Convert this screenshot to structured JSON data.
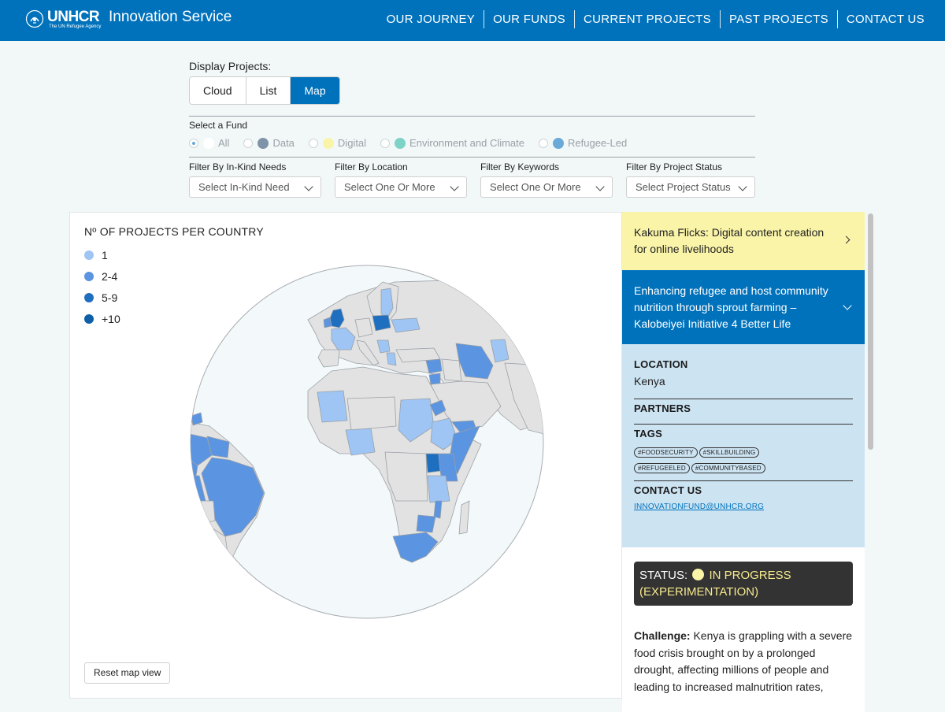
{
  "header": {
    "logo_text": "UNHCR",
    "logo_tagline": "The UN Refugee Agency",
    "site_name": "Innovation Service",
    "nav": [
      "OUR JOURNEY",
      "OUR FUNDS",
      "CURRENT PROJECTS",
      "PAST PROJECTS",
      "CONTACT US"
    ]
  },
  "display": {
    "label": "Display Projects:",
    "options": [
      "Cloud",
      "List",
      "Map"
    ],
    "selected": "Map"
  },
  "funds": {
    "label": "Select a Fund",
    "options": [
      {
        "label": "All",
        "color": "#ffffff",
        "checked": true
      },
      {
        "label": "Data",
        "color": "#7f93a8",
        "checked": false
      },
      {
        "label": "Digital",
        "color": "#faf4a8",
        "checked": false
      },
      {
        "label": "Environment and Climate",
        "color": "#7dd3c6",
        "checked": false
      },
      {
        "label": "Refugee-Led",
        "color": "#6aa9d8",
        "checked": false
      }
    ]
  },
  "filters": [
    {
      "label": "Filter By In-Kind Needs",
      "value": "Select In-Kind Need"
    },
    {
      "label": "Filter By Location",
      "value": "Select One Or More"
    },
    {
      "label": "Filter By Keywords",
      "value": "Select One Or More"
    },
    {
      "label": "Filter By Project Status",
      "value": "Select Project Status"
    }
  ],
  "map": {
    "legend_title": "Nº OF PROJECTS PER COUNTRY",
    "legend": [
      {
        "label": "1",
        "color": "#9ec5f4"
      },
      {
        "label": "2-4",
        "color": "#5b94e0"
      },
      {
        "label": "5-9",
        "color": "#1f6fc0"
      },
      {
        "label": "+10",
        "color": "#0d5fa8"
      }
    ],
    "reset_label": "Reset map view"
  },
  "side": {
    "project_1": "Kakuma Flicks: Digital content creation for online livelihoods",
    "project_2": "Enhancing refugee and host community nutrition through sprout farming – Kalobeiyei Initiative 4 Better Life",
    "location_head": "LOCATION",
    "location": "Kenya",
    "partners_head": "PARTNERS",
    "tags_head": "TAGS",
    "tags": [
      "#FOODSECURITY",
      "#SKILLBUILDING",
      "#REFUGEELED",
      "#COMMUNITYBASED"
    ],
    "contact_head": "CONTACT US",
    "email": "INNOVATIONFUND@UNHCR.ORG",
    "status_label": "STATUS:",
    "status_value": "IN PROGRESS (EXPERIMENTATION)",
    "challenge_label": "Challenge:",
    "challenge_text": "Kenya is grappling with a severe food crisis brought on by a prolonged drought, affecting millions of people and leading to increased malnutrition rates,"
  }
}
